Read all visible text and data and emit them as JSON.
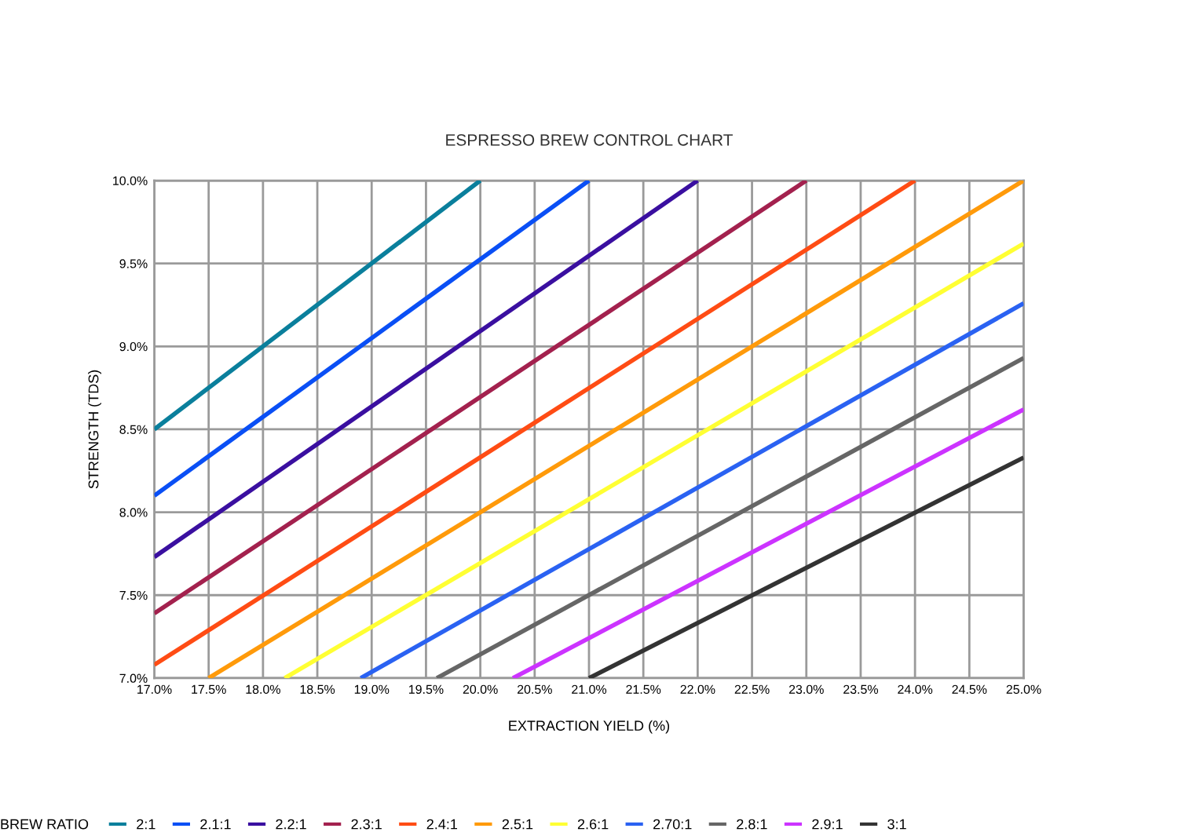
{
  "chart_data": {
    "type": "line",
    "title": "ESPRESSO BREW CONTROL CHART",
    "xlabel": "EXTRACTION YIELD (%)",
    "ylabel": "STRENGTH (TDS)",
    "legend_title": "BREW RATIO",
    "legend": "bottom",
    "grid": true,
    "marker": "none",
    "line_style": "solid",
    "xlim": [
      17,
      25
    ],
    "ylim": [
      7,
      10
    ],
    "xticks": [
      {
        "value": 17,
        "label": "17.0%"
      },
      {
        "value": 17.5,
        "label": "17.5%"
      },
      {
        "value": 18,
        "label": "18.0%"
      },
      {
        "value": 18.5,
        "label": "18.5%"
      },
      {
        "value": 19,
        "label": "19.0%"
      },
      {
        "value": 19.5,
        "label": "19.5%"
      },
      {
        "value": 20,
        "label": "20.0%"
      },
      {
        "value": 20.5,
        "label": "20.5%"
      },
      {
        "value": 21,
        "label": "21.0%"
      },
      {
        "value": 21.5,
        "label": "21.5%"
      },
      {
        "value": 22,
        "label": "22.0%"
      },
      {
        "value": 22.5,
        "label": "22.5%"
      },
      {
        "value": 23,
        "label": "23.0%"
      },
      {
        "value": 23.5,
        "label": "23.5%"
      },
      {
        "value": 24,
        "label": "24.0%"
      },
      {
        "value": 24.5,
        "label": "24.5%"
      },
      {
        "value": 25,
        "label": "25.0%"
      }
    ],
    "yticks": [
      {
        "value": 7,
        "label": "7.0%"
      },
      {
        "value": 7.5,
        "label": "7.5%"
      },
      {
        "value": 8,
        "label": "8.0%"
      },
      {
        "value": 8.5,
        "label": "8.5%"
      },
      {
        "value": 9,
        "label": "9.0%"
      },
      {
        "value": 9.5,
        "label": "9.5%"
      },
      {
        "value": 10,
        "label": "10.0%"
      }
    ],
    "series": [
      {
        "name": "2:1",
        "color": "#0a7f9c",
        "x": [
          17,
          20
        ],
        "values": [
          8.5,
          10
        ]
      },
      {
        "name": "2.1:1",
        "color": "#0a4ff5",
        "x": [
          17,
          21
        ],
        "values": [
          8.1,
          10
        ]
      },
      {
        "name": "2.2:1",
        "color": "#3a0fa0",
        "x": [
          17,
          22
        ],
        "values": [
          7.73,
          10
        ]
      },
      {
        "name": "2.3:1",
        "color": "#a3214e",
        "x": [
          17,
          23
        ],
        "values": [
          7.39,
          10
        ]
      },
      {
        "name": "2.4:1",
        "color": "#ff4c14",
        "x": [
          17,
          24
        ],
        "values": [
          7.08,
          10
        ]
      },
      {
        "name": "2.5:1",
        "color": "#ff9a0a",
        "x": [
          17.5,
          25
        ],
        "values": [
          7,
          10
        ]
      },
      {
        "name": "2.6:1",
        "color": "#ffff33",
        "x": [
          18.2,
          25
        ],
        "values": [
          7,
          9.62
        ]
      },
      {
        "name": "2.70:1",
        "color": "#2a62f2",
        "x": [
          18.9,
          25
        ],
        "values": [
          7,
          9.26
        ]
      },
      {
        "name": "2.8:1",
        "color": "#666666",
        "x": [
          19.6,
          25
        ],
        "values": [
          7,
          8.93
        ]
      },
      {
        "name": "2.9:1",
        "color": "#cc33ff",
        "x": [
          20.3,
          25
        ],
        "values": [
          7,
          8.62
        ]
      },
      {
        "name": "3:1",
        "color": "#333333",
        "x": [
          21,
          25
        ],
        "values": [
          7,
          8.33
        ]
      }
    ]
  }
}
